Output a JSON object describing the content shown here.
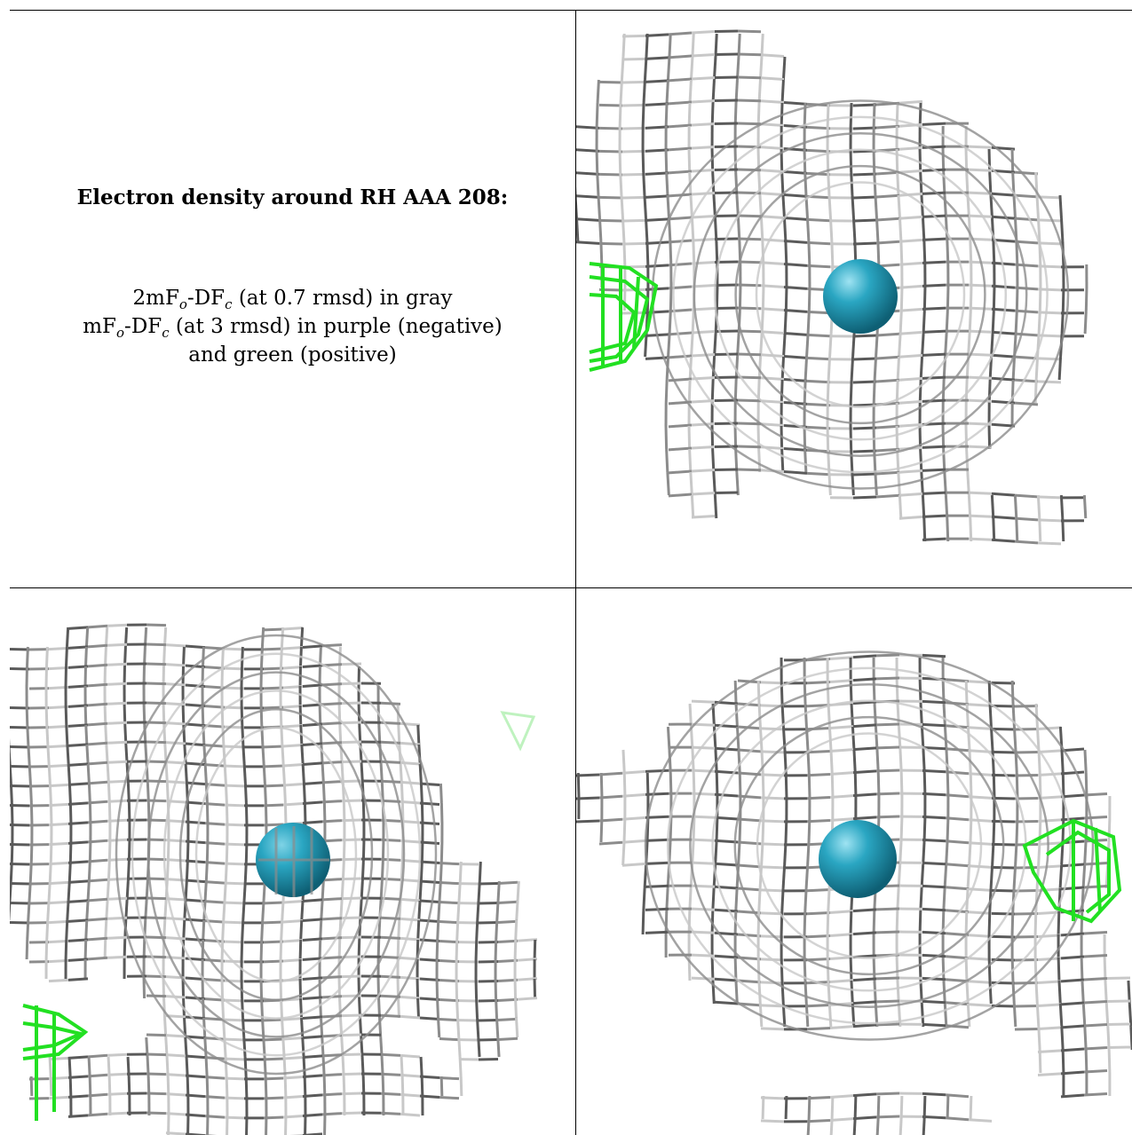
{
  "panel_caption": {
    "title": "Electron density around RH AAA 208:",
    "line1": {
      "a": "2mF",
      "sub1": "o",
      "b": "-DF",
      "sub2": "c",
      "c": " (at 0.7 rmsd) in gray"
    },
    "line2": {
      "a": "mF",
      "sub1": "o",
      "b": "-DF",
      "sub2": "c",
      "c": " (at 3 rmsd) in purple (negative)"
    },
    "line3": "and green (positive)"
  },
  "colors": {
    "mesh_gray": "#8c8c8c",
    "mesh_dark": "#5a5a5a",
    "mesh_light": "#c8c8c8",
    "positive_green": "#22e022",
    "atom_teal": "#1f97b3"
  },
  "views": [
    {
      "name": "view-top-right"
    },
    {
      "name": "view-bottom-left"
    },
    {
      "name": "view-bottom-right"
    }
  ]
}
